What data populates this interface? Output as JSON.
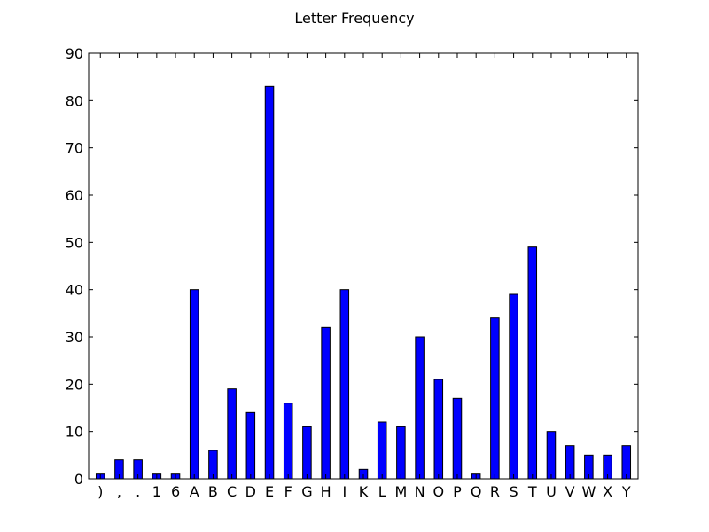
{
  "chart_data": {
    "type": "bar",
    "title": "Letter Frequency",
    "xlabel": "",
    "ylabel": "",
    "categories": [
      ")",
      ",",
      ".",
      "1",
      "6",
      "A",
      "B",
      "C",
      "D",
      "E",
      "F",
      "G",
      "H",
      "I",
      "K",
      "L",
      "M",
      "N",
      "O",
      "P",
      "Q",
      "R",
      "S",
      "T",
      "U",
      "V",
      "W",
      "X",
      "Y"
    ],
    "values": [
      1,
      4,
      4,
      1,
      1,
      40,
      6,
      19,
      14,
      83,
      16,
      11,
      32,
      40,
      2,
      12,
      11,
      30,
      21,
      17,
      1,
      34,
      39,
      49,
      10,
      7,
      5,
      5,
      7
    ],
    "ylim": [
      0,
      90
    ],
    "yticks": [
      0,
      10,
      20,
      30,
      40,
      50,
      60,
      70,
      80,
      90
    ],
    "grid": false,
    "legend": "none",
    "bar_color": "#0000ff",
    "edge_color": "#000000"
  }
}
